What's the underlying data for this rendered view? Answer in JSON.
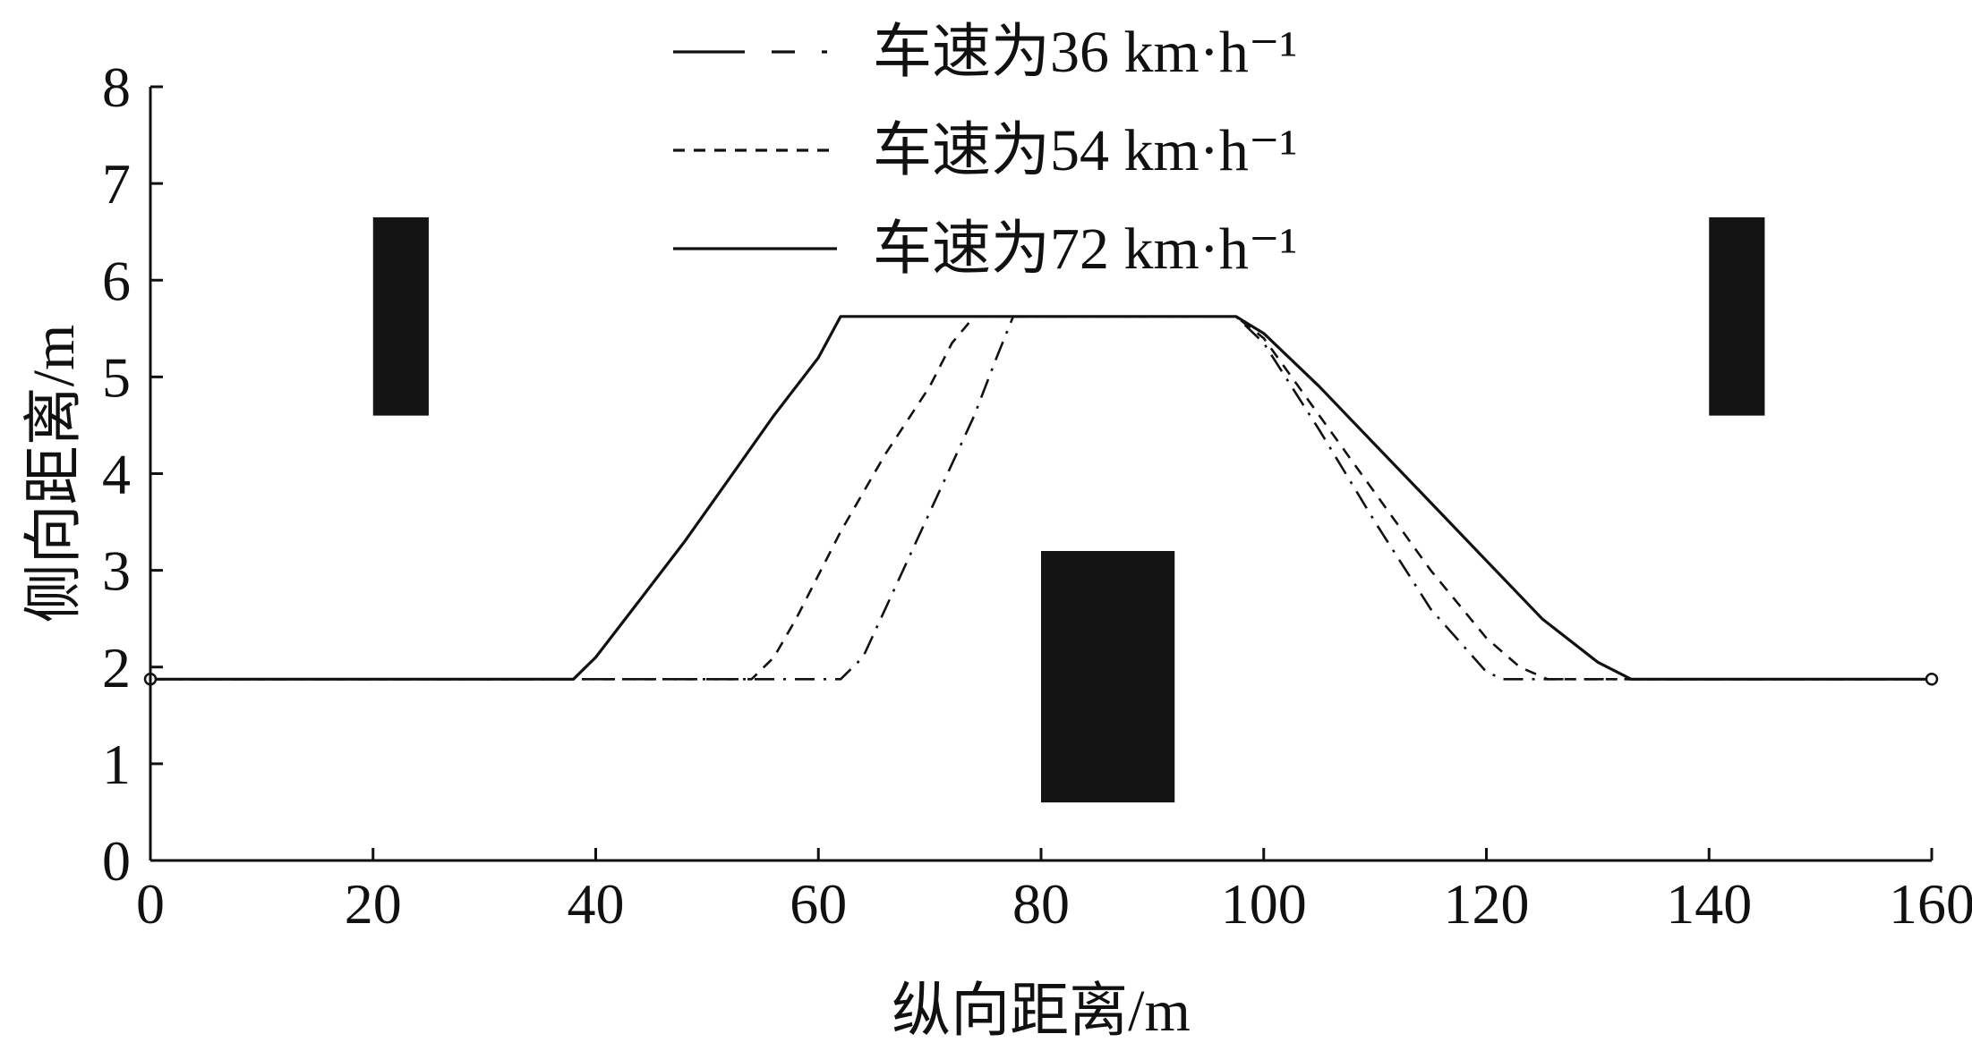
{
  "chart_data": {
    "type": "line",
    "xlabel": "纵向距离/m",
    "ylabel": "侧向距离/m",
    "xlim": [
      0,
      160
    ],
    "ylim": [
      0,
      8
    ],
    "x_ticks": [
      "0",
      "20",
      "40",
      "60",
      "80",
      "100",
      "120",
      "140",
      "160"
    ],
    "y_ticks": [
      "0",
      "1",
      "2",
      "3",
      "4",
      "5",
      "6",
      "7",
      "8"
    ],
    "grid": false,
    "legend_position": "top-center",
    "series": [
      {
        "name": "车速为36 km·h⁻¹",
        "style": "dash-dot",
        "x": [
          0,
          62,
          64,
          66,
          70,
          74,
          76,
          77.5,
          97.5,
          100,
          105,
          110,
          115,
          120,
          121.5,
          160
        ],
        "y": [
          1.875,
          1.875,
          2.1,
          2.6,
          3.6,
          4.6,
          5.2,
          5.625,
          5.625,
          5.35,
          4.45,
          3.5,
          2.6,
          1.95,
          1.875,
          1.875
        ]
      },
      {
        "name": "车速为54 km·h⁻¹",
        "style": "dashed",
        "x": [
          0,
          54,
          56,
          58,
          62,
          66,
          70,
          72,
          74,
          97.5,
          100,
          105,
          110,
          115,
          120,
          123,
          125.5,
          160
        ],
        "y": [
          1.875,
          1.875,
          2.1,
          2.5,
          3.4,
          4.2,
          4.9,
          5.35,
          5.625,
          5.625,
          5.4,
          4.6,
          3.8,
          3.0,
          2.3,
          2.0,
          1.875,
          1.875
        ]
      },
      {
        "name": "车速为72 km·h⁻¹",
        "style": "solid",
        "x": [
          0,
          38,
          40,
          44,
          48,
          52,
          56,
          60,
          62,
          97.5,
          100,
          105,
          110,
          115,
          120,
          125,
          130,
          133,
          160
        ],
        "y": [
          1.875,
          1.875,
          2.1,
          2.7,
          3.3,
          3.95,
          4.6,
          5.2,
          5.625,
          5.625,
          5.45,
          4.9,
          4.3,
          3.7,
          3.1,
          2.5,
          2.05,
          1.875,
          1.875
        ]
      }
    ],
    "obstacles": [
      {
        "x0": 20,
        "x1": 25,
        "y0": 4.6,
        "y1": 6.65
      },
      {
        "x0": 80,
        "x1": 92,
        "y0": 0.6,
        "y1": 3.2
      },
      {
        "x0": 140,
        "x1": 145,
        "y0": 4.6,
        "y1": 6.65
      }
    ],
    "endpoints": [
      {
        "x": 0,
        "y": 1.875
      },
      {
        "x": 160,
        "y": 1.875
      }
    ],
    "colors": {
      "line": "#111111",
      "obstacle": "#141414"
    }
  }
}
